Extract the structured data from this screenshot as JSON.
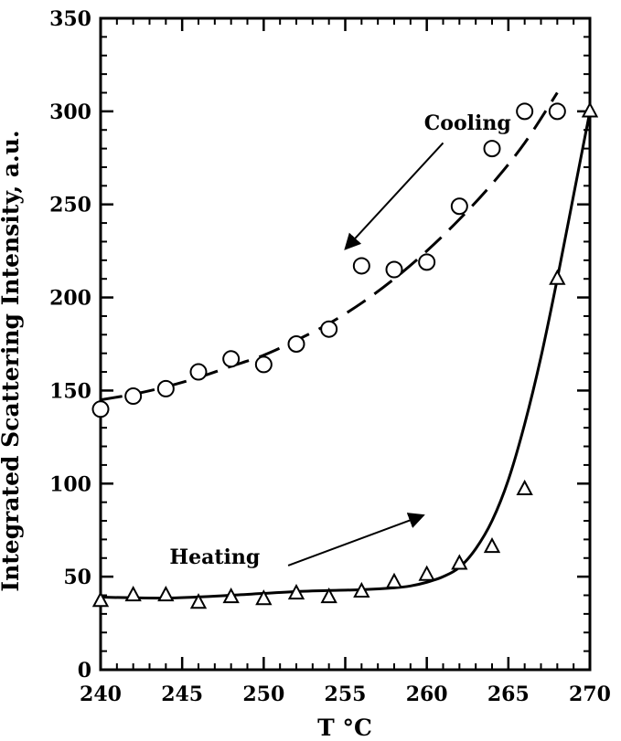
{
  "chart_data": {
    "type": "scatter",
    "xlabel": "T °C",
    "ylabel": "Integrated Scattering Intensity, a.u.",
    "xlim": [
      240,
      270
    ],
    "ylim": [
      0,
      350
    ],
    "x_ticks": [
      240,
      245,
      250,
      255,
      260,
      265,
      270
    ],
    "y_ticks": [
      0,
      50,
      100,
      150,
      200,
      250,
      300,
      350
    ],
    "grid": false,
    "legend": "none",
    "series": [
      {
        "name": "Cooling",
        "marker": "circle",
        "x": [
          240,
          242,
          244,
          246,
          248,
          250,
          252,
          254,
          256,
          258,
          260,
          262,
          264,
          266,
          268
        ],
        "y": [
          140,
          147,
          151,
          160,
          167,
          164,
          175,
          183,
          217,
          215,
          219,
          249,
          280,
          300,
          300
        ],
        "fit_curve": {
          "style": "dashed",
          "x": [
            240,
            242,
            244,
            246,
            248,
            250,
            252,
            254,
            256,
            258,
            260,
            262,
            264,
            266,
            268
          ],
          "y": [
            145,
            148,
            152,
            157,
            163,
            169,
            177,
            186,
            197,
            210,
            225,
            242,
            261,
            283,
            310
          ]
        }
      },
      {
        "name": "Heating",
        "marker": "triangle",
        "x": [
          240,
          242,
          244,
          246,
          248,
          250,
          252,
          254,
          256,
          258,
          260,
          262,
          264,
          266,
          268,
          270
        ],
        "y": [
          37,
          40,
          40,
          36,
          39,
          38,
          41,
          39,
          42,
          47,
          51,
          57,
          66,
          97,
          210,
          300
        ],
        "fit_curve": {
          "style": "solid",
          "x": [
            240,
            244,
            248,
            252,
            256,
            258,
            259,
            260,
            261,
            262,
            263,
            264,
            265,
            266,
            267,
            268,
            269,
            270
          ],
          "y": [
            39,
            38.5,
            40,
            42,
            43,
            44,
            45,
            47,
            50,
            55,
            65,
            80,
            102,
            132,
            168,
            210,
            255,
            300
          ]
        }
      }
    ],
    "annotations": [
      {
        "text": "Cooling",
        "at": [
          262.5,
          290
        ],
        "arrow_from": [
          261,
          283
        ],
        "arrow_to": [
          255,
          226
        ]
      },
      {
        "text": "Heating",
        "at": [
          247,
          57
        ],
        "arrow_from": [
          251.5,
          56
        ],
        "arrow_to": [
          259.8,
          83
        ]
      }
    ]
  }
}
